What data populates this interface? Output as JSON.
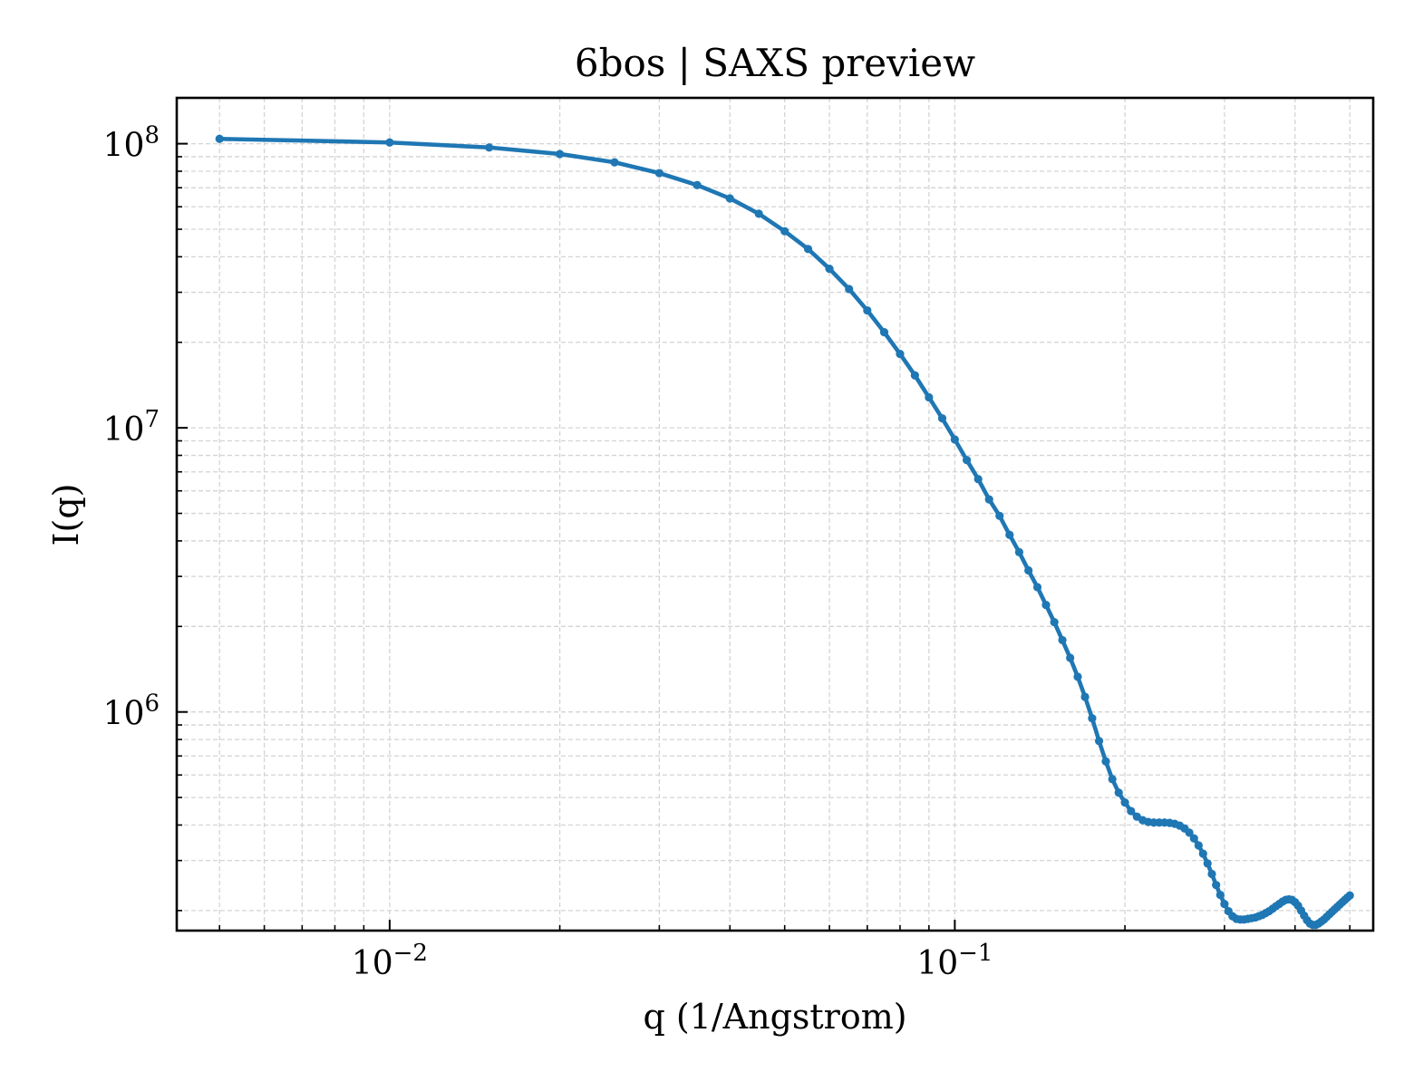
{
  "chart_data": {
    "type": "line",
    "title": "6bos | SAXS preview",
    "xlabel": "q (1/Angstrom)",
    "ylabel": "I(q)",
    "xscale": "log",
    "yscale": "log",
    "xlim": [
      0.0042,
      0.55
    ],
    "ylim": [
      170000,
      145000000
    ],
    "grid": true,
    "legend": "none",
    "line_color": "#1f77b4",
    "x_ticks": [
      {
        "base": "10",
        "exp": "−2",
        "value": 0.01
      },
      {
        "base": "10",
        "exp": "−1",
        "value": 0.1
      }
    ],
    "y_ticks": [
      {
        "base": "10",
        "exp": "6",
        "value": 1000000
      },
      {
        "base": "10",
        "exp": "7",
        "value": 10000000
      },
      {
        "base": "10",
        "exp": "8",
        "value": 100000000
      }
    ],
    "series": [
      {
        "x": [
          0.005,
          0.01,
          0.015,
          0.02,
          0.025,
          0.03,
          0.035,
          0.04,
          0.045,
          0.05,
          0.055,
          0.06,
          0.065,
          0.07,
          0.075,
          0.08,
          0.085,
          0.09,
          0.095,
          0.1,
          0.105,
          0.11,
          0.115,
          0.12,
          0.125,
          0.13,
          0.135,
          0.14,
          0.145,
          0.15,
          0.155,
          0.16,
          0.165,
          0.17,
          0.175,
          0.18,
          0.185,
          0.19,
          0.195,
          0.2,
          0.205,
          0.21,
          0.215,
          0.22,
          0.225,
          0.23,
          0.235,
          0.24,
          0.245,
          0.25,
          0.255,
          0.26,
          0.265,
          0.27,
          0.275,
          0.28,
          0.285,
          0.29,
          0.295,
          0.3,
          0.305,
          0.31,
          0.315,
          0.32,
          0.325,
          0.33,
          0.335,
          0.34,
          0.345,
          0.35,
          0.355,
          0.36,
          0.365,
          0.37,
          0.375,
          0.38,
          0.385,
          0.39,
          0.395,
          0.4,
          0.405,
          0.41,
          0.415,
          0.42,
          0.425,
          0.43,
          0.435,
          0.44,
          0.445,
          0.45,
          0.455,
          0.46,
          0.465,
          0.47,
          0.475,
          0.48,
          0.485,
          0.49,
          0.495,
          0.5
        ],
        "y": [
          104000000,
          101000000,
          97000000,
          92000000,
          86000000,
          78800000,
          71500000,
          64200000,
          56700000,
          49200000,
          42600000,
          36300000,
          30800000,
          25900000,
          21700000,
          18200000,
          15300000,
          12800000,
          10800000,
          9100000,
          7700000,
          6600000,
          5600000,
          4900000,
          4200000,
          3650000,
          3150000,
          2750000,
          2380000,
          2070000,
          1790000,
          1550000,
          1330000,
          1130000,
          950000,
          790000,
          670000,
          580000,
          520000,
          480000,
          448000,
          428000,
          416000,
          410000,
          408000,
          408000,
          408000,
          407000,
          404000,
          398000,
          389000,
          376000,
          359000,
          339000,
          317000,
          293000,
          269000,
          246000,
          227000,
          211000,
          199000,
          191000,
          187000,
          186000,
          186000,
          187000,
          188000,
          189000,
          191000,
          193000,
          196000,
          199000,
          203000,
          207000,
          211000,
          215000,
          218000,
          219000,
          218000,
          214000,
          208000,
          200000,
          192000,
          185000,
          180000,
          178000,
          178000,
          180000,
          183000,
          186000,
          190000,
          194000,
          198000,
          202000,
          206000,
          210000,
          214000,
          218000,
          222000,
          226000
        ]
      }
    ]
  }
}
